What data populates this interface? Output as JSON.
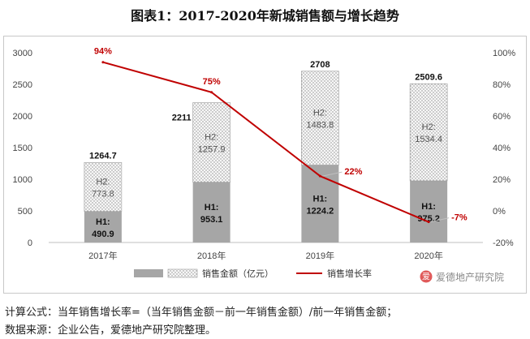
{
  "page_title": "图表1：2017-2020年新城销售额与增长趋势",
  "notes": {
    "formula": "计算公式：当年销售增长率=（当年销售金额－前一年销售金额）/前一年销售金额；",
    "source": "数据来源：企业公告，爱德地产研究院整理。"
  },
  "watermark": {
    "text": "爱德地产研究院",
    "logo_char": "爱"
  },
  "colors": {
    "h1_bar": "#a6a6a6",
    "h2_pattern_bg": "#f7f7f7",
    "h2_pattern_dot": "#8c8c8c",
    "line": "#c00000",
    "line_label": "#c00000"
  },
  "chart_data": {
    "type": "bar+line",
    "categories": [
      "2017年",
      "2018年",
      "2019年",
      "2020年"
    ],
    "series": [
      {
        "name": "销售金额（亿元）",
        "kind": "stacked-bar",
        "axis": "left",
        "stack": [
          {
            "label": "H1:",
            "values": [
              490.9,
              953.1,
              1224.2,
              975.2
            ]
          },
          {
            "label": "H2:",
            "values": [
              773.8,
              1257.9,
              1483.8,
              1534.4
            ]
          }
        ],
        "totals": [
          1264.7,
          2211,
          2708,
          2509.6
        ],
        "total_labels": [
          "1264.7",
          "2211",
          "2708",
          "2509.6"
        ]
      },
      {
        "name": "销售增长率",
        "kind": "line",
        "axis": "right",
        "values": [
          94,
          75,
          22,
          -7
        ],
        "labels": [
          "94%",
          "75%",
          "22%",
          "-7%"
        ]
      }
    ],
    "y_left": {
      "min": 0,
      "max": 3000,
      "ticks": [
        "0",
        "500",
        "1000",
        "1500",
        "2000",
        "2500",
        "3000"
      ]
    },
    "y_right": {
      "min": -20,
      "max": 100,
      "ticks": [
        "-20%",
        "0%",
        "20%",
        "40%",
        "60%",
        "80%",
        "100%"
      ]
    },
    "grid": false,
    "legend_position": "bottom"
  }
}
